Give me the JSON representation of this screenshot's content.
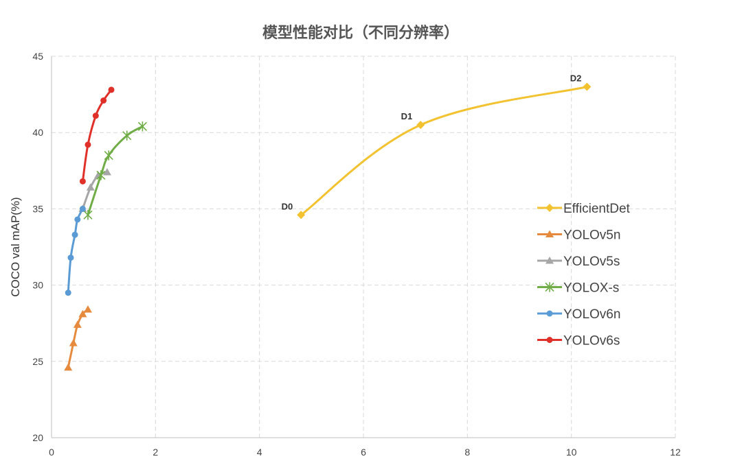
{
  "chart_data": {
    "type": "line",
    "title": "模型性能对比（不同分辨率）",
    "xlabel": "",
    "ylabel": "COCO val mAP(%)",
    "xlim": [
      0,
      12
    ],
    "ylim": [
      20,
      45
    ],
    "x_ticks": [
      "0",
      "2",
      "4",
      "6",
      "8",
      "10",
      "12"
    ],
    "y_ticks": [
      "20",
      "25",
      "30",
      "35",
      "40",
      "45"
    ],
    "grid": true,
    "legend_position": "right",
    "series": [
      {
        "name": "EfficientDet",
        "color": "#F2C230",
        "marker": "diamond",
        "x": [
          4.8,
          7.1,
          10.3
        ],
        "y": [
          34.6,
          40.5,
          43.0
        ],
        "labels": [
          "D0",
          "D1",
          "D2"
        ]
      },
      {
        "name": "YOLOv5n",
        "color": "#E68A3E",
        "marker": "triangle",
        "x": [
          0.32,
          0.42,
          0.5,
          0.6,
          0.7
        ],
        "y": [
          24.6,
          26.2,
          27.4,
          28.1,
          28.4
        ]
      },
      {
        "name": "YOLOv5s",
        "color": "#A6A6A6",
        "marker": "triangle",
        "x": [
          0.6,
          0.75,
          0.9,
          1.07
        ],
        "y": [
          35.0,
          36.4,
          37.2,
          37.4
        ]
      },
      {
        "name": "YOLOX-s",
        "color": "#70AD47",
        "marker": "asterisk",
        "x": [
          0.7,
          0.95,
          1.1,
          1.45,
          1.75
        ],
        "y": [
          34.6,
          37.2,
          38.5,
          39.8,
          40.4
        ]
      },
      {
        "name": "YOLOv6n",
        "color": "#5B9BD5",
        "marker": "circle",
        "x": [
          0.32,
          0.37,
          0.45,
          0.5,
          0.6
        ],
        "y": [
          29.5,
          31.8,
          33.3,
          34.3,
          35.0
        ]
      },
      {
        "name": "YOLOv6s",
        "color": "#E0302A",
        "marker": "circle",
        "x": [
          0.6,
          0.7,
          0.85,
          1.0,
          1.15
        ],
        "y": [
          36.8,
          39.2,
          41.1,
          42.1,
          42.8
        ]
      }
    ]
  }
}
